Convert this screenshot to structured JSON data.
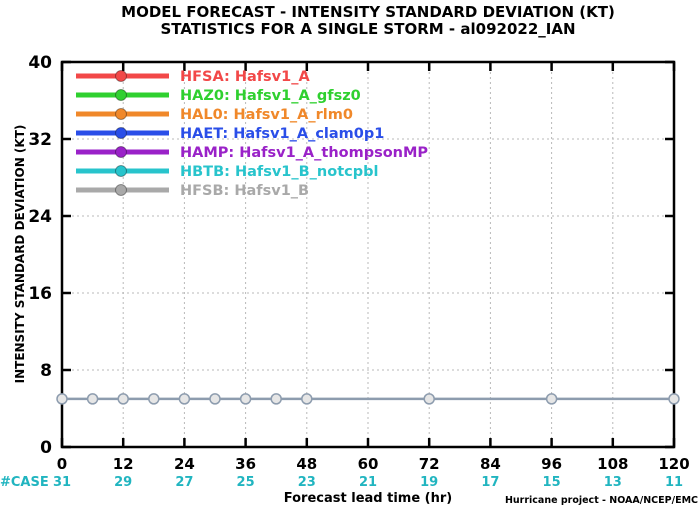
{
  "chart_data": {
    "type": "line",
    "title": "MODEL FORECAST - INTENSITY STANDARD DEVIATION (KT)",
    "subtitle": "STATISTICS FOR A SINGLE STORM - al092022_IAN",
    "xlabel": "Forecast lead time (hr)",
    "ylabel": "INTENSITY STANDARD DEVIATION (KT)",
    "xlim": [
      0,
      120
    ],
    "ylim": [
      0,
      40
    ],
    "xticks": [
      0,
      12,
      24,
      36,
      48,
      60,
      72,
      84,
      96,
      108,
      120
    ],
    "yticks": [
      0,
      8,
      16,
      24,
      32,
      40
    ],
    "grid": true,
    "legend_position": "top-left",
    "case_label": "#CASE",
    "case_counts": [
      31,
      29,
      27,
      25,
      23,
      21,
      19,
      17,
      15,
      13,
      11
    ],
    "credit": "Hurricane project - NOAA/NCEP/EMC",
    "series": [
      {
        "name": "HFSA: Hafsv1_A",
        "color": "#f24848",
        "x": [],
        "y": []
      },
      {
        "name": "HAZ0: Hafsv1_A_gfsz0",
        "color": "#2fd02f",
        "x": [],
        "y": []
      },
      {
        "name": "HAL0: Hafsv1_A_rlm0",
        "color": "#f0882a",
        "x": [],
        "y": []
      },
      {
        "name": "HAET: Hafsv1_A_clam0p1",
        "color": "#2a4ee8",
        "x": [],
        "y": []
      },
      {
        "name": "HAMP: Hafsv1_A_thompsonMP",
        "color": "#9a22c8",
        "x": [],
        "y": []
      },
      {
        "name": "HBTB: Hafsv1_B_notcpbl",
        "color": "#28c4cc",
        "x": [],
        "y": []
      },
      {
        "name": "HFSB: Hafsv1_B",
        "color": "#a9a9a9",
        "x": [],
        "y": []
      }
    ],
    "reference_line": {
      "color": "#8d9cae",
      "x": [
        0,
        6,
        12,
        18,
        24,
        30,
        36,
        42,
        48,
        72,
        96,
        120
      ],
      "y": [
        5,
        5,
        5,
        5,
        5,
        5,
        5,
        5,
        5,
        5,
        5,
        5
      ]
    }
  }
}
